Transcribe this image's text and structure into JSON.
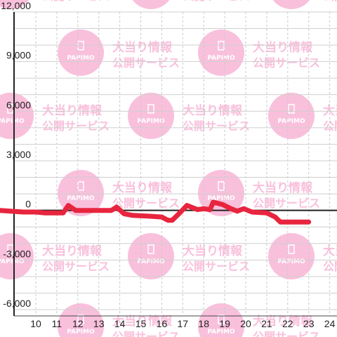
{
  "chart_data": {
    "type": "line",
    "x_ticks": [
      10,
      11,
      12,
      13,
      14,
      15,
      16,
      17,
      18,
      19,
      20,
      21,
      22,
      23,
      24
    ],
    "y_ticks": [
      -6000,
      -3000,
      0,
      3000,
      6000,
      9000,
      12000
    ],
    "y_tick_labels": [
      "-6,000",
      "-3,000",
      "0",
      "3,000",
      "6,000",
      "9,000",
      "12,000"
    ],
    "xlim": [
      9,
      24.4
    ],
    "ylim": [
      -6000,
      12000
    ],
    "grid": true,
    "series": [
      {
        "color": "#e8253e",
        "points": [
          [
            9.0,
            0
          ],
          [
            9.4,
            -100
          ],
          [
            10.0,
            -100
          ],
          [
            10.4,
            -150
          ],
          [
            11.3,
            -150
          ],
          [
            11.55,
            300
          ],
          [
            11.9,
            0
          ],
          [
            12.5,
            0
          ],
          [
            13.6,
            0
          ],
          [
            13.85,
            200
          ],
          [
            14.2,
            -200
          ],
          [
            14.6,
            -300
          ],
          [
            15.4,
            -350
          ],
          [
            16.0,
            -400
          ],
          [
            16.3,
            -600
          ],
          [
            16.5,
            -600
          ],
          [
            16.9,
            -100
          ],
          [
            17.2,
            300
          ],
          [
            17.7,
            50
          ],
          [
            18.0,
            100
          ],
          [
            18.3,
            50
          ],
          [
            18.45,
            500
          ],
          [
            18.9,
            350
          ],
          [
            19.3,
            100
          ],
          [
            19.6,
            -50
          ],
          [
            19.9,
            100
          ],
          [
            20.3,
            -100
          ],
          [
            21.0,
            -150
          ],
          [
            21.4,
            -400
          ],
          [
            21.65,
            -700
          ],
          [
            22.0,
            -700
          ],
          [
            22.5,
            -700
          ],
          [
            23.0,
            -700
          ]
        ]
      }
    ]
  },
  "watermark": {
    "title": "大当り情報",
    "subtitle": "公開サービス",
    "logo_text": "PAPIMO",
    "color": "#f9c0dc"
  }
}
